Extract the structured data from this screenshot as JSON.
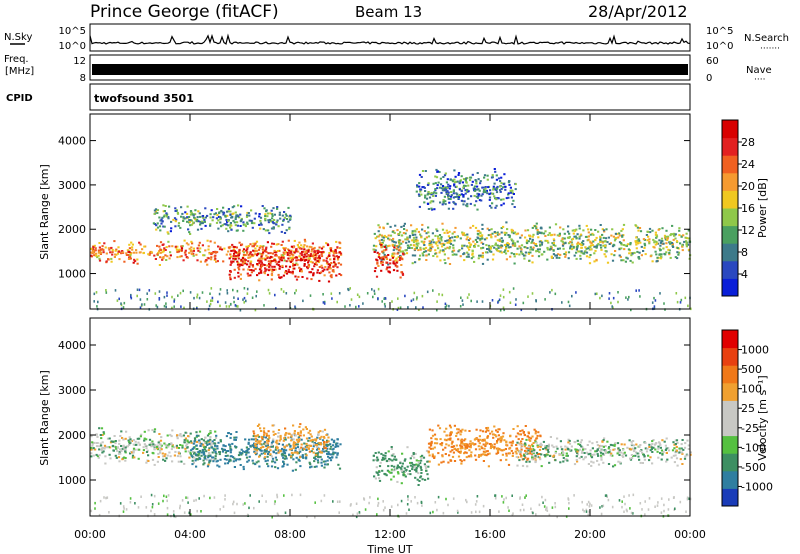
{
  "header": {
    "station": "Prince George (fitACF)",
    "beam": "Beam 13",
    "date": "28/Apr/2012"
  },
  "left_labels": {
    "nsky": "N.Sky",
    "freq": "Freq.",
    "freq_unit": "[MHz]",
    "cpid": "CPID"
  },
  "right_labels": {
    "nsearch": "N.Search",
    "nsearch_dots": "·······",
    "nave": "Nave",
    "nave_dots": "····"
  },
  "noise_axis": {
    "left_ticks": [
      "10^5",
      "10^0"
    ],
    "right_ticks": [
      "10^5",
      "10^0"
    ]
  },
  "freq_axis": {
    "left_ticks": [
      "12",
      "8"
    ],
    "right_ticks": [
      "60",
      "0"
    ]
  },
  "cpid_text": "twofsound 3501",
  "time_axis": {
    "label": "Time UT",
    "ticks": [
      "00:00",
      "04:00",
      "08:00",
      "12:00",
      "16:00",
      "20:00",
      "00:00"
    ]
  },
  "range_axis": {
    "label": "Slant Range [km]",
    "ticks": [
      "1000",
      "2000",
      "3000",
      "4000"
    ],
    "range": [
      200,
      4600
    ]
  },
  "power_bar": {
    "label": "Power [dB]",
    "ticks": [
      "4",
      "8",
      "12",
      "16",
      "20",
      "24",
      "28"
    ],
    "colors": [
      "#0a1fd8",
      "#2a48c0",
      "#3d7a8a",
      "#4aa060",
      "#8fc84a",
      "#f0c820",
      "#f59a30",
      "#f06020",
      "#e22020",
      "#d80000"
    ]
  },
  "velocity_bar": {
    "label": "Velocity [m s⁻¹]",
    "ticks": [
      "1000",
      "500",
      "100",
      "25",
      "-25",
      "-100",
      "-500",
      "-1000"
    ],
    "colors": [
      "#1a3cb8",
      "#2f7ea0",
      "#3d8f62",
      "#55c040",
      "#c8c8c4",
      "#c8c8c4",
      "#f0a030",
      "#f07818",
      "#e84010",
      "#e00000"
    ]
  },
  "chart_data": {
    "type": "heatmap",
    "xlabel": "Time UT",
    "ylabel": "Slant Range [km]",
    "xlim": [
      "00:00",
      "24:00"
    ],
    "ylim": [
      200,
      4600
    ],
    "power_bands": [
      {
        "t_start": 0.0,
        "t_end": 10.0,
        "range_start": 1200,
        "range_end": 1800,
        "power_db": 22
      },
      {
        "t_start": 5.5,
        "t_end": 10.0,
        "range_start": 800,
        "range_end": 1700,
        "power_db": 28
      },
      {
        "t_start": 2.5,
        "t_end": 8.0,
        "range_start": 1900,
        "range_end": 2600,
        "power_db": 10
      },
      {
        "t_start": 11.3,
        "t_end": 24.0,
        "range_start": 1200,
        "range_end": 2200,
        "power_db": 14
      },
      {
        "t_start": 11.3,
        "t_end": 12.5,
        "range_start": 900,
        "range_end": 1700,
        "power_db": 26
      },
      {
        "t_start": 13.0,
        "t_end": 17.0,
        "range_start": 2400,
        "range_end": 3400,
        "power_db": 8
      }
    ],
    "velocity_bands": [
      {
        "t_start": 0.0,
        "t_end": 5.0,
        "range_start": 1300,
        "range_end": 2200,
        "velocity": 0
      },
      {
        "t_start": 4.0,
        "t_end": 10.0,
        "range_start": 1200,
        "range_end": 2100,
        "velocity": 300
      },
      {
        "t_start": 6.5,
        "t_end": 9.5,
        "range_start": 1500,
        "range_end": 2300,
        "velocity": -200
      },
      {
        "t_start": 11.3,
        "t_end": 13.5,
        "range_start": 900,
        "range_end": 1800,
        "velocity": 100
      },
      {
        "t_start": 13.5,
        "t_end": 18.0,
        "range_start": 1300,
        "range_end": 2300,
        "velocity": -300
      },
      {
        "t_start": 17.0,
        "t_end": 24.0,
        "range_start": 1300,
        "range_end": 2000,
        "velocity": 0
      }
    ]
  }
}
